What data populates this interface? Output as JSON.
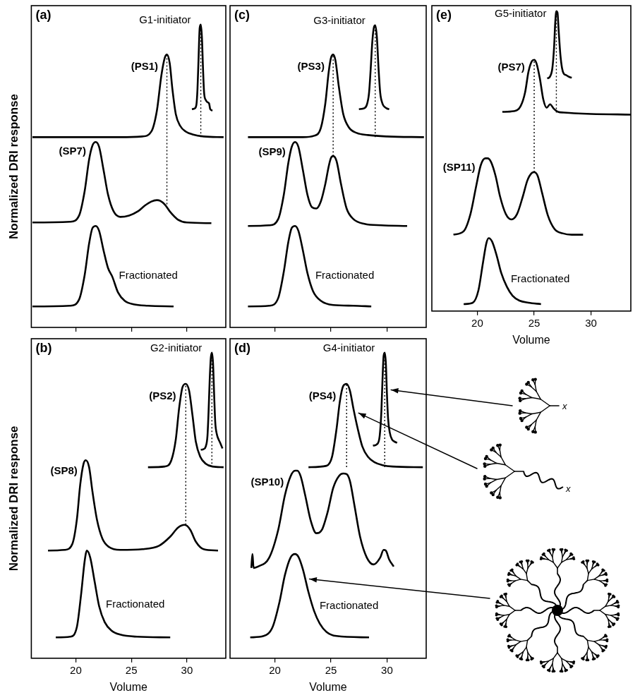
{
  "chart_data": [
    {
      "type": "line",
      "panel": "(a)",
      "y_label": "Normalized DRI response",
      "xlim": [
        16,
        33.5
      ],
      "xticks": [
        20,
        25,
        30
      ],
      "ylim": [
        0,
        4.6
      ],
      "grid": false,
      "tick_labels": false,
      "marker": "none",
      "line_style": "solid",
      "series": [
        {
          "name": "G1-initiator",
          "color": "#000000",
          "x": [
            30.45,
            30.7,
            30.85,
            30.95,
            31.05,
            31.15,
            31.25,
            31.35,
            31.45,
            31.55,
            31.7,
            31.85,
            32.0,
            32.1,
            32.3
          ],
          "values": [
            3.12,
            3.13,
            3.18,
            3.4,
            3.85,
            4.28,
            4.33,
            4.15,
            3.7,
            3.35,
            3.25,
            3.22,
            3.2,
            3.12,
            3.1
          ]
        },
        {
          "name": "(PS1)",
          "color": "#000000",
          "x": [
            16.1,
            24,
            26,
            26.8,
            27.3,
            27.7,
            28.0,
            28.2,
            28.45,
            28.7,
            29.0,
            29.4,
            29.9,
            30.5,
            31.5,
            33.3
          ],
          "values": [
            2.72,
            2.72,
            2.73,
            2.8,
            3.1,
            3.6,
            3.85,
            3.9,
            3.78,
            3.4,
            3.05,
            2.88,
            2.8,
            2.76,
            2.73,
            2.72
          ]
        },
        {
          "name": "(SP7)",
          "color": "#000000",
          "x": [
            16.1,
            19.5,
            20.3,
            20.8,
            21.2,
            21.5,
            21.8,
            22.1,
            22.5,
            22.9,
            23.4,
            24.0,
            24.8,
            25.6,
            26.2,
            26.8,
            27.3,
            27.6,
            28.0,
            28.5,
            29.2,
            30.0,
            32.2
          ],
          "values": [
            1.5,
            1.51,
            1.6,
            1.95,
            2.4,
            2.6,
            2.65,
            2.58,
            2.25,
            1.9,
            1.66,
            1.58,
            1.6,
            1.66,
            1.74,
            1.8,
            1.82,
            1.81,
            1.76,
            1.65,
            1.54,
            1.5,
            1.49
          ]
        },
        {
          "name": "Fractionated",
          "color": "#000000",
          "x": [
            16.1,
            19.5,
            20.3,
            20.8,
            21.2,
            21.5,
            21.8,
            22.1,
            22.5,
            22.9,
            23.3,
            23.8,
            24.4,
            25.2,
            26.5,
            28.8
          ],
          "values": [
            0.3,
            0.31,
            0.4,
            0.75,
            1.2,
            1.42,
            1.45,
            1.38,
            1.1,
            0.85,
            0.72,
            0.5,
            0.38,
            0.33,
            0.31,
            0.3
          ]
        }
      ],
      "guide_lines": [
        {
          "x": 31.25,
          "y": [
            2.72,
            4.33
          ],
          "line_style": "dotted"
        },
        {
          "x": 28.2,
          "y": [
            1.76,
            3.9
          ],
          "line_style": "dotted"
        }
      ]
    },
    {
      "type": "line",
      "panel": "(b)",
      "y_label": "Normalized DRI response",
      "x_label": "Volume",
      "xlim": [
        16,
        33.5
      ],
      "xticks": [
        20,
        25,
        30
      ],
      "ylim": [
        0,
        4.6
      ],
      "grid": false,
      "tick_labels": "x",
      "marker": "none",
      "line_style": "solid",
      "series": [
        {
          "name": "G2-initiator",
          "color": "#000000",
          "x": [
            31.25,
            31.5,
            31.7,
            31.85,
            31.95,
            32.05,
            32.15,
            32.25,
            32.35,
            32.45,
            32.55,
            32.7,
            32.85,
            33.0,
            33.2
          ],
          "values": [
            3.0,
            3.01,
            3.05,
            3.2,
            3.55,
            4.0,
            4.32,
            4.4,
            4.25,
            3.8,
            3.4,
            3.22,
            3.15,
            3.1,
            3.02
          ]
        },
        {
          "name": "(PS2)",
          "color": "#000000",
          "x": [
            26.5,
            28.0,
            28.6,
            29.0,
            29.3,
            29.6,
            29.9,
            30.2,
            30.5,
            30.8,
            31.2,
            31.7,
            32.3,
            33.3
          ],
          "values": [
            2.75,
            2.76,
            2.85,
            3.15,
            3.6,
            3.9,
            3.95,
            3.85,
            3.5,
            3.12,
            2.9,
            2.8,
            2.76,
            2.75
          ]
        },
        {
          "name": "(SP8)",
          "color": "#000000",
          "x": [
            17.5,
            19.0,
            19.7,
            20.1,
            20.4,
            20.7,
            20.9,
            21.2,
            21.5,
            21.9,
            22.4,
            23.0,
            24.0,
            26.0,
            27.5,
            28.5,
            29.2,
            29.8,
            30.3,
            30.8,
            31.5,
            32.8
          ],
          "values": [
            1.55,
            1.56,
            1.65,
            2.0,
            2.5,
            2.8,
            2.85,
            2.75,
            2.4,
            2.0,
            1.72,
            1.6,
            1.56,
            1.57,
            1.62,
            1.75,
            1.88,
            1.92,
            1.85,
            1.68,
            1.57,
            1.55
          ]
        },
        {
          "name": "Fractionated",
          "color": "#000000",
          "x": [
            18.2,
            19.5,
            20.1,
            20.5,
            20.8,
            21.0,
            21.3,
            21.7,
            22.1,
            22.6,
            23.2,
            24.0,
            25.5,
            28.5
          ],
          "values": [
            0.3,
            0.31,
            0.45,
            0.95,
            1.4,
            1.55,
            1.45,
            1.1,
            0.75,
            0.52,
            0.4,
            0.34,
            0.31,
            0.3
          ]
        }
      ],
      "guide_lines": [
        {
          "x": 32.25,
          "y": [
            2.8,
            4.4
          ],
          "line_style": "dotted"
        },
        {
          "x": 29.9,
          "y": [
            1.92,
            3.95
          ],
          "line_style": "dotted"
        }
      ]
    },
    {
      "type": "line",
      "panel": "(c)",
      "xlim": [
        16,
        33.5
      ],
      "xticks": [
        20,
        25,
        30
      ],
      "ylim": [
        0,
        4.6
      ],
      "grid": false,
      "tick_labels": false,
      "marker": "none",
      "line_style": "solid",
      "series": [
        {
          "name": "G3-initiator",
          "color": "#000000",
          "x": [
            27.5,
            27.9,
            28.2,
            28.4,
            28.55,
            28.7,
            28.85,
            28.95,
            29.1,
            29.25,
            29.4,
            29.6,
            29.8,
            30.0,
            30.2
          ],
          "values": [
            3.12,
            3.13,
            3.18,
            3.35,
            3.7,
            4.1,
            4.3,
            4.32,
            4.15,
            3.7,
            3.35,
            3.2,
            3.15,
            3.13,
            3.12
          ]
        },
        {
          "name": "(PS3)",
          "color": "#000000",
          "x": [
            17.6,
            22.5,
            23.5,
            24.1,
            24.5,
            24.8,
            25.0,
            25.2,
            25.4,
            25.7,
            26.1,
            26.6,
            27.3,
            28.3,
            30,
            33.3
          ],
          "values": [
            2.72,
            2.72,
            2.74,
            2.85,
            3.2,
            3.65,
            3.85,
            3.9,
            3.82,
            3.45,
            3.05,
            2.86,
            2.78,
            2.75,
            2.73,
            2.72
          ]
        },
        {
          "name": "(SP9)",
          "color": "#000000",
          "x": [
            17.6,
            19.5,
            20.3,
            20.8,
            21.2,
            21.5,
            21.8,
            22.1,
            22.5,
            22.9,
            23.3,
            23.7,
            24.1,
            24.5,
            24.8,
            25.0,
            25.2,
            25.5,
            25.9,
            26.4,
            27.0,
            28.0,
            29.5,
            31.8
          ],
          "values": [
            1.45,
            1.46,
            1.55,
            1.9,
            2.35,
            2.58,
            2.65,
            2.58,
            2.25,
            1.9,
            1.72,
            1.7,
            1.8,
            2.05,
            2.3,
            2.42,
            2.45,
            2.38,
            2.05,
            1.7,
            1.55,
            1.48,
            1.46,
            1.45
          ]
        },
        {
          "name": "Fractionated",
          "color": "#000000",
          "x": [
            17.6,
            19.5,
            20.3,
            20.8,
            21.2,
            21.5,
            21.8,
            22.1,
            22.5,
            22.9,
            23.4,
            24.1,
            25.2,
            27.0,
            28.6
          ],
          "values": [
            0.3,
            0.31,
            0.42,
            0.8,
            1.22,
            1.42,
            1.45,
            1.38,
            1.1,
            0.78,
            0.52,
            0.38,
            0.32,
            0.31,
            0.3
          ]
        }
      ],
      "guide_lines": [
        {
          "x": 28.95,
          "y": [
            2.72,
            4.32
          ],
          "line_style": "dotted"
        },
        {
          "x": 25.2,
          "y": [
            2.45,
            3.9
          ],
          "line_style": "dotted"
        }
      ]
    },
    {
      "type": "line",
      "panel": "(d)",
      "x_label": "Volume",
      "xlim": [
        16,
        33.5
      ],
      "xticks": [
        20,
        25,
        30
      ],
      "ylim": [
        0,
        4.6
      ],
      "grid": false,
      "tick_labels": "x",
      "marker": "none",
      "line_style": "solid",
      "series": [
        {
          "name": "G4-initiator",
          "color": "#000000",
          "x": [
            28.75,
            29.1,
            29.35,
            29.5,
            29.6,
            29.7,
            29.8,
            29.9,
            30.0,
            30.1,
            30.25,
            30.45,
            30.65,
            30.9
          ],
          "values": [
            3.06,
            3.08,
            3.2,
            3.55,
            4.0,
            4.35,
            4.4,
            4.25,
            3.8,
            3.45,
            3.25,
            3.15,
            3.12,
            3.1
          ]
        },
        {
          "name": "(PS4)",
          "color": "#000000",
          "x": [
            23.0,
            24.6,
            25.1,
            25.5,
            25.8,
            26.1,
            26.4,
            26.7,
            27.0,
            27.4,
            27.8,
            28.3,
            28.9,
            29.6,
            30.5,
            33.2
          ],
          "values": [
            2.75,
            2.77,
            2.9,
            3.3,
            3.7,
            3.92,
            3.95,
            3.85,
            3.6,
            3.3,
            3.05,
            2.9,
            2.82,
            2.78,
            2.76,
            2.75
          ]
        },
        {
          "name": "(SP10)",
          "color": "#000000",
          "x": [
            17.9,
            18.0,
            18.1,
            18.5,
            19.5,
            20.3,
            20.9,
            21.4,
            21.8,
            22.0,
            22.3,
            22.7,
            23.2,
            23.7,
            24.2,
            24.7,
            25.2,
            25.7,
            26.1,
            26.4,
            26.7,
            27.1,
            27.6,
            28.2,
            28.8,
            29.4,
            29.7,
            29.9,
            30.2,
            30.6
          ],
          "values": [
            1.3,
            1.5,
            1.3,
            1.32,
            1.45,
            1.85,
            2.35,
            2.62,
            2.7,
            2.7,
            2.62,
            2.35,
            1.98,
            1.8,
            1.85,
            2.1,
            2.45,
            2.62,
            2.66,
            2.65,
            2.55,
            2.2,
            1.75,
            1.45,
            1.35,
            1.45,
            1.56,
            1.55,
            1.42,
            1.32
          ]
        },
        {
          "name": "Fractionated",
          "color": "#000000",
          "x": [
            17.8,
            19.0,
            19.8,
            20.4,
            20.9,
            21.4,
            21.8,
            22.1,
            22.5,
            23.0,
            23.5,
            24.0,
            24.6,
            25.5,
            28.4
          ],
          "values": [
            0.3,
            0.32,
            0.45,
            0.8,
            1.2,
            1.45,
            1.5,
            1.46,
            1.28,
            0.95,
            0.68,
            0.5,
            0.38,
            0.32,
            0.3
          ]
        }
      ],
      "guide_lines": [
        {
          "x": 29.8,
          "y": [
            2.75,
            4.4
          ],
          "line_style": "dotted"
        },
        {
          "x": 26.4,
          "y": [
            2.75,
            3.95
          ],
          "line_style": "dotted"
        }
      ]
    },
    {
      "type": "line",
      "panel": "(e)",
      "x_label": "Volume",
      "xlim": [
        16,
        33.5
      ],
      "xticks": [
        20,
        25,
        30
      ],
      "ylim": [
        0,
        4.4
      ],
      "grid": false,
      "tick_labels": "x",
      "marker": "none",
      "line_style": "solid",
      "series": [
        {
          "name": "G5-initiator",
          "color": "#000000",
          "x": [
            26.15,
            26.4,
            26.6,
            26.75,
            26.85,
            26.95,
            27.05,
            27.15,
            27.3,
            27.45,
            27.6,
            27.8,
            28.0,
            28.3
          ],
          "values": [
            3.35,
            3.38,
            3.5,
            3.8,
            4.15,
            4.32,
            4.3,
            4.05,
            3.7,
            3.5,
            3.42,
            3.4,
            3.38,
            3.36
          ]
        },
        {
          "name": "(PS7)",
          "color": "#000000",
          "x": [
            22.2,
            23.2,
            23.8,
            24.2,
            24.5,
            24.8,
            25.0,
            25.2,
            25.5,
            25.8,
            26.1,
            26.4,
            26.7,
            27.1,
            27.6,
            28.5,
            30,
            33.5
          ],
          "values": [
            2.87,
            2.88,
            2.95,
            3.15,
            3.45,
            3.6,
            3.62,
            3.57,
            3.35,
            3.05,
            2.93,
            2.98,
            2.92,
            2.87,
            2.86,
            2.85,
            2.84,
            2.83
          ]
        },
        {
          "name": "(SP11)",
          "color": "#000000",
          "x": [
            17.9,
            18.8,
            19.4,
            19.9,
            20.3,
            20.7,
            20.9,
            21.2,
            21.6,
            22.0,
            22.5,
            23.0,
            23.5,
            24.0,
            24.4,
            24.8,
            25.0,
            25.3,
            25.7,
            26.2,
            26.8,
            27.5,
            28.3,
            29.3
          ],
          "values": [
            1.1,
            1.15,
            1.4,
            1.8,
            2.1,
            2.2,
            2.2,
            2.15,
            1.95,
            1.65,
            1.4,
            1.32,
            1.4,
            1.65,
            1.88,
            1.99,
            2.0,
            1.95,
            1.7,
            1.38,
            1.18,
            1.12,
            1.1,
            1.1
          ]
        },
        {
          "name": "Fractionated",
          "color": "#000000",
          "x": [
            18.8,
            19.6,
            20.1,
            20.5,
            20.8,
            21.0,
            21.3,
            21.7,
            22.1,
            22.6,
            23.1,
            23.7,
            24.5,
            25.6
          ],
          "values": [
            0.1,
            0.12,
            0.3,
            0.7,
            0.98,
            1.05,
            1.0,
            0.8,
            0.55,
            0.35,
            0.22,
            0.15,
            0.12,
            0.1
          ]
        }
      ],
      "guide_lines": [
        {
          "x": 26.95,
          "y": [
            2.86,
            4.32
          ],
          "line_style": "dotted"
        },
        {
          "x": 25.0,
          "y": [
            2.0,
            3.62
          ],
          "line_style": "dotted"
        }
      ]
    }
  ],
  "schematic": {
    "end_label": "x"
  }
}
